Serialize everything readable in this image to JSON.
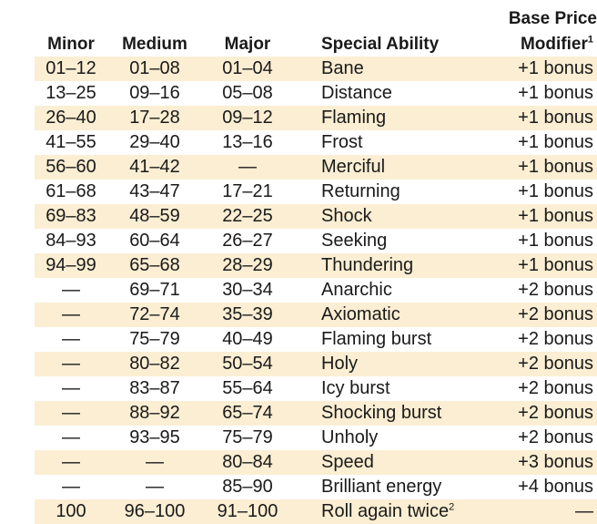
{
  "headers": {
    "minor": "Minor",
    "medium": "Medium",
    "major": "Major",
    "ability": "Special Ability",
    "price_line1": "Base Price",
    "price_line2": "Modifier",
    "price_footnote": "1"
  },
  "rows": [
    {
      "minor": "01–12",
      "medium": "01–08",
      "major": "01–04",
      "ability": "Bane",
      "footnote": "",
      "price": "+1 bonus"
    },
    {
      "minor": "13–25",
      "medium": "09–16",
      "major": "05–08",
      "ability": "Distance",
      "footnote": "",
      "price": "+1 bonus"
    },
    {
      "minor": "26–40",
      "medium": "17–28",
      "major": "09–12",
      "ability": "Flaming",
      "footnote": "",
      "price": "+1 bonus"
    },
    {
      "minor": "41–55",
      "medium": "29–40",
      "major": "13–16",
      "ability": "Frost",
      "footnote": "",
      "price": "+1 bonus"
    },
    {
      "minor": "56–60",
      "medium": "41–42",
      "major": "—",
      "ability": "Merciful",
      "footnote": "",
      "price": "+1 bonus"
    },
    {
      "minor": "61–68",
      "medium": "43–47",
      "major": "17–21",
      "ability": "Returning",
      "footnote": "",
      "price": "+1 bonus"
    },
    {
      "minor": "69–83",
      "medium": "48–59",
      "major": "22–25",
      "ability": "Shock",
      "footnote": "",
      "price": "+1 bonus"
    },
    {
      "minor": "84–93",
      "medium": "60–64",
      "major": "26–27",
      "ability": "Seeking",
      "footnote": "",
      "price": "+1 bonus"
    },
    {
      "minor": "94–99",
      "medium": "65–68",
      "major": "28–29",
      "ability": "Thundering",
      "footnote": "",
      "price": "+1 bonus"
    },
    {
      "minor": "—",
      "medium": "69–71",
      "major": "30–34",
      "ability": "Anarchic",
      "footnote": "",
      "price": "+2 bonus"
    },
    {
      "minor": "—",
      "medium": "72–74",
      "major": "35–39",
      "ability": "Axiomatic",
      "footnote": "",
      "price": "+2 bonus"
    },
    {
      "minor": "—",
      "medium": "75–79",
      "major": "40–49",
      "ability": "Flaming burst",
      "footnote": "",
      "price": "+2 bonus"
    },
    {
      "minor": "—",
      "medium": "80–82",
      "major": "50–54",
      "ability": "Holy",
      "footnote": "",
      "price": "+2 bonus"
    },
    {
      "minor": "—",
      "medium": "83–87",
      "major": "55–64",
      "ability": "Icy burst",
      "footnote": "",
      "price": "+2 bonus"
    },
    {
      "minor": "—",
      "medium": "88–92",
      "major": "65–74",
      "ability": "Shocking burst",
      "footnote": "",
      "price": "+2 bonus"
    },
    {
      "minor": "—",
      "medium": "93–95",
      "major": "75–79",
      "ability": "Unholy",
      "footnote": "",
      "price": "+2 bonus"
    },
    {
      "minor": "—",
      "medium": "—",
      "major": "80–84",
      "ability": "Speed",
      "footnote": "",
      "price": "+3 bonus"
    },
    {
      "minor": "—",
      "medium": "—",
      "major": "85–90",
      "ability": "Brilliant energy",
      "footnote": "",
      "price": "+4 bonus"
    },
    {
      "minor": "100",
      "medium": "96–100",
      "major": "91–100",
      "ability": "Roll again twice",
      "footnote": "2",
      "price": "—"
    }
  ],
  "colors": {
    "row_shade": "#fbeed3",
    "text": "#1a1a1a"
  }
}
